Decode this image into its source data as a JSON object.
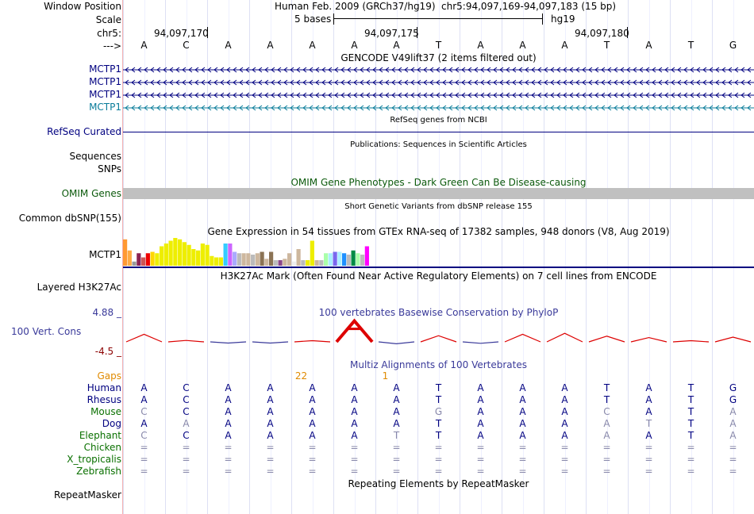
{
  "header": {
    "window_position_label": "Window Position",
    "assembly": "Human Feb. 2009 (GRCh37/hg19)",
    "position": "chr5:94,097,169-94,097,183 (15 bp)",
    "scale_label": "Scale",
    "scale_text": "5 bases",
    "scale_db": "hg19",
    "chrom_label": "chr5:",
    "strand_label": "--->",
    "coords": [
      "94,097,170",
      "94,097,175",
      "94,097,180"
    ],
    "bases": [
      "A",
      "C",
      "A",
      "A",
      "A",
      "A",
      "A",
      "T",
      "A",
      "A",
      "A",
      "T",
      "A",
      "T",
      "G"
    ]
  },
  "gencode": {
    "title": "GENCODE V49lift37 (2 items filtered out)",
    "items": [
      {
        "label": "MCTP1",
        "color": "#000080"
      },
      {
        "label": "MCTP1",
        "color": "#000080"
      },
      {
        "label": "MCTP1",
        "color": "#000080"
      },
      {
        "label": "MCTP1",
        "color": "#0a7c9a"
      }
    ]
  },
  "refseq": {
    "title": "RefSeq genes from NCBI",
    "label": "RefSeq Curated"
  },
  "publications": {
    "title": "Publications: Sequences in Scientific Articles",
    "label1": "Sequences",
    "label2": "SNPs"
  },
  "omim": {
    "title": "OMIM Gene Phenotypes - Dark Green Can Be Disease-causing",
    "label": "OMIM Genes"
  },
  "dbsnp": {
    "title": "Short Genetic Variants from dbSNP release 155",
    "label": "Common dbSNP(155)"
  },
  "gtex": {
    "title": "Gene Expression in 54 tissues from GTEx RNA-seq of 17382 samples, 948 donors (V8, Aug 2019)",
    "label": "MCTP1",
    "bars": [
      {
        "v": 0.95,
        "c": "#ff9933"
      },
      {
        "v": 0.55,
        "c": "#ffaa44"
      },
      {
        "v": 0.15,
        "c": "#999999"
      },
      {
        "v": 0.45,
        "c": "#8b2252"
      },
      {
        "v": 0.3,
        "c": "#cd5555"
      },
      {
        "v": 0.45,
        "c": "#ee0000"
      },
      {
        "v": 0.5,
        "c": "#ffd700"
      },
      {
        "v": 0.45,
        "c": "#eeee00"
      },
      {
        "v": 0.7,
        "c": "#eeee00"
      },
      {
        "v": 0.8,
        "c": "#eeee00"
      },
      {
        "v": 0.9,
        "c": "#eeee00"
      },
      {
        "v": 1.0,
        "c": "#eeee00"
      },
      {
        "v": 0.95,
        "c": "#eeee00"
      },
      {
        "v": 0.85,
        "c": "#eeee00"
      },
      {
        "v": 0.75,
        "c": "#eeee00"
      },
      {
        "v": 0.6,
        "c": "#eeee00"
      },
      {
        "v": 0.55,
        "c": "#eeee00"
      },
      {
        "v": 0.8,
        "c": "#eeee00"
      },
      {
        "v": 0.75,
        "c": "#eeee00"
      },
      {
        "v": 0.35,
        "c": "#eeee00"
      },
      {
        "v": 0.3,
        "c": "#eeee00"
      },
      {
        "v": 0.3,
        "c": "#eeee00"
      },
      {
        "v": 0.8,
        "c": "#33ccff"
      },
      {
        "v": 0.8,
        "c": "#cc66ff"
      },
      {
        "v": 0.5,
        "c": "#aaaaff"
      },
      {
        "v": 0.45,
        "c": "#bbbbbb"
      },
      {
        "v": 0.45,
        "c": "#cdb79e"
      },
      {
        "v": 0.45,
        "c": "#cdb79e"
      },
      {
        "v": 0.4,
        "c": "#bbbbbb"
      },
      {
        "v": 0.45,
        "c": "#cdb79e"
      },
      {
        "v": 0.5,
        "c": "#8b7355"
      },
      {
        "v": 0.25,
        "c": "#cdb79e"
      },
      {
        "v": 0.5,
        "c": "#8b7355"
      },
      {
        "v": 0.2,
        "c": "#bbbbbb"
      },
      {
        "v": 0.2,
        "c": "#8b4789"
      },
      {
        "v": 0.25,
        "c": "#cdb79e"
      },
      {
        "v": 0.45,
        "c": "#cdb79e"
      },
      {
        "v": 0.15,
        "c": "#eeeeee"
      },
      {
        "v": 0.6,
        "c": "#cdb79e"
      },
      {
        "v": 0.2,
        "c": "#bbbbbb"
      },
      {
        "v": 0.2,
        "c": "#eeee00"
      },
      {
        "v": 0.9,
        "c": "#eeee00"
      },
      {
        "v": 0.2,
        "c": "#cdb79e"
      },
      {
        "v": 0.2,
        "c": "#bbbbbb"
      },
      {
        "v": 0.45,
        "c": "#aaffaa"
      },
      {
        "v": 0.45,
        "c": "#aaeeff"
      },
      {
        "v": 0.5,
        "c": "#7a67ee"
      },
      {
        "v": 0.5,
        "c": "#aaeeff"
      },
      {
        "v": 0.45,
        "c": "#1e90ff"
      },
      {
        "v": 0.4,
        "c": "#bbbbbb"
      },
      {
        "v": 0.55,
        "c": "#008b45"
      },
      {
        "v": 0.45,
        "c": "#aaffaa"
      },
      {
        "v": 0.4,
        "c": "#bbbbbb"
      },
      {
        "v": 0.7,
        "c": "#ff00ff"
      }
    ]
  },
  "h3k27ac": {
    "title": "H3K27Ac Mark (Often Found Near Active Regulatory Elements) on 7 cell lines from ENCODE",
    "label": "Layered H3K27Ac"
  },
  "phylop": {
    "title": "100 vertebrates Basewise Conservation by PhyloP",
    "label": "100 Vert. Cons",
    "ymax": "4.88 _",
    "ymin": "-4.5 _",
    "scores": [
      1.6,
      0.3,
      -0.2,
      -0.1,
      0.1,
      4.4,
      -0.4,
      1.3,
      -0.3,
      1.6,
      1.8,
      1.2,
      0.9,
      0.2,
      1.0
    ]
  },
  "multiz": {
    "title": "Multiz Alignments of 100 Vertebrates",
    "gaps_label": "Gaps",
    "gap_counts": [
      {
        "base": 4,
        "text": "22"
      },
      {
        "base": 6,
        "text": "1"
      }
    ],
    "species": [
      {
        "name": "Human",
        "color": "#000080",
        "bases": [
          "A",
          "C",
          "A",
          "A",
          "A",
          "A",
          "A",
          "T",
          "A",
          "A",
          "A",
          "T",
          "A",
          "T",
          "G"
        ]
      },
      {
        "name": "Rhesus",
        "color": "#000080",
        "bases": [
          "A",
          "C",
          "A",
          "A",
          "A",
          "A",
          "A",
          "T",
          "A",
          "A",
          "A",
          "T",
          "A",
          "T",
          "G"
        ]
      },
      {
        "name": "Mouse",
        "color": "#0a7000",
        "bases": [
          "C",
          "C",
          "A",
          "A",
          "A",
          "A",
          "A",
          "G",
          "A",
          "A",
          "A",
          "C",
          "A",
          "T",
          "A"
        ]
      },
      {
        "name": "Dog",
        "color": "#000080",
        "bases": [
          "A",
          "A",
          "A",
          "A",
          "A",
          "A",
          "A",
          "T",
          "A",
          "A",
          "A",
          "A",
          "T",
          "T",
          "A"
        ]
      },
      {
        "name": "Elephant",
        "color": "#0a7000",
        "bases": [
          "C",
          "C",
          "A",
          "A",
          "A",
          "A",
          "T",
          "T",
          "A",
          "A",
          "A",
          "A",
          "A",
          "T",
          "A"
        ]
      },
      {
        "name": "Chicken",
        "color": "#0a7000",
        "bases": [
          "=",
          "=",
          "=",
          "=",
          "=",
          "=",
          "=",
          "=",
          "=",
          "=",
          "=",
          "=",
          "=",
          "=",
          "="
        ]
      },
      {
        "name": "X_tropicalis",
        "color": "#0a7000",
        "bases": [
          "=",
          "=",
          "=",
          "=",
          "=",
          "=",
          "=",
          "=",
          "=",
          "=",
          "=",
          "=",
          "=",
          "=",
          "="
        ]
      },
      {
        "name": "Zebrafish",
        "color": "#0a7000",
        "bases": [
          "=",
          "=",
          "=",
          "=",
          "=",
          "=",
          "=",
          "=",
          "=",
          "=",
          "=",
          "=",
          "=",
          "=",
          "="
        ]
      }
    ]
  },
  "repeatmasker": {
    "title": "Repeating Elements by RepeatMasker",
    "label": "RepeatMasker"
  }
}
